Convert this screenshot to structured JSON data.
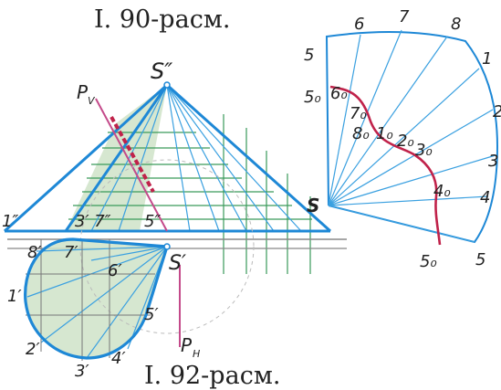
{
  "captions": {
    "top": "I. 90-расм.",
    "bottom": "I. 92-расм."
  },
  "labels": {
    "apex_front": "S″",
    "apex_top": "S′",
    "trace_v": "P",
    "trace_v_sub": "V",
    "trace_h": "P",
    "trace_h_sub": "H",
    "front_1": "1″",
    "front_3_7": "3′ 7″",
    "front_5": "5″",
    "top_8": "8′",
    "top_7": "7′",
    "top_6": "6′",
    "top_1": "1′",
    "top_2": "2′",
    "top_3": "3′",
    "top_4": "4′",
    "top_5": "5′",
    "dev_apex": "S",
    "dev_rim": [
      "6",
      "7",
      "8",
      "1",
      "2",
      "3",
      "4",
      "5",
      "5"
    ],
    "dev_curve": [
      "5₀",
      "6₀",
      "7₀",
      "8₀",
      "1₀",
      "2₀",
      "3₀",
      "4₀",
      "5₀"
    ]
  },
  "colors": {
    "outline": "#1e88d6",
    "thin": "#3aa0e0",
    "section": "#c0224a",
    "fill": "#cfe3c8",
    "proj": "#3a9a5a",
    "pink": "#c44a8a",
    "axis": "#888888"
  }
}
